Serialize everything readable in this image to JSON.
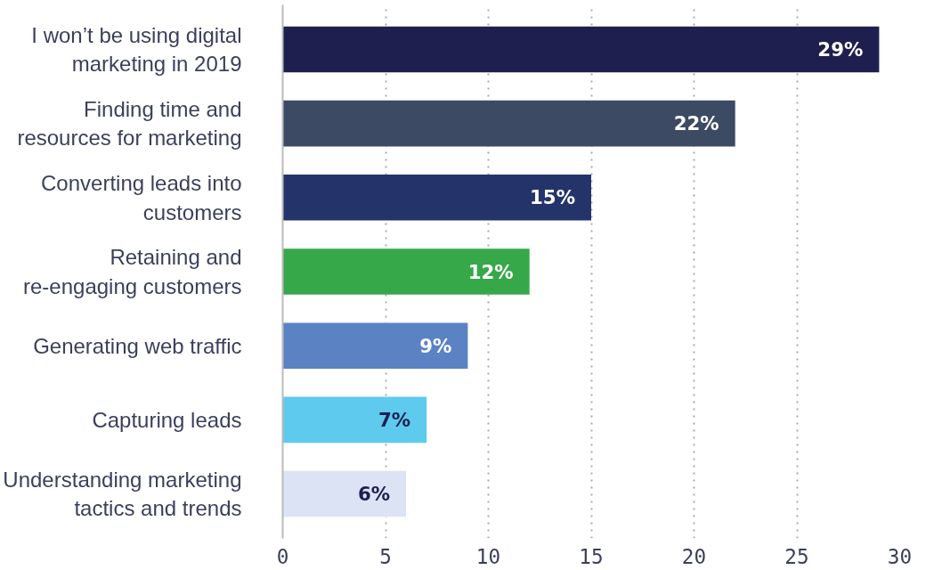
{
  "chart_data": {
    "type": "bar",
    "orientation": "horizontal",
    "categories": [
      "I won’t be using digital\nmarketing in 2019",
      "Finding time and\nresources for marketing",
      "Converting leads into\ncustomers",
      "Retaining and\nre-engaging customers",
      "Generating web traffic",
      "Capturing leads",
      "Understanding marketing\ntactics and trends"
    ],
    "values": [
      29,
      22,
      15,
      12,
      9,
      7,
      6
    ],
    "colors": [
      "#1f1f4f",
      "#3d4a63",
      "#24346b",
      "#36a84a",
      "#5b83c4",
      "#5ecbee",
      "#dce3f5"
    ],
    "value_labels": [
      "29%",
      "22%",
      "15%",
      "12%",
      "9%",
      "7%",
      "6%"
    ],
    "xlim": [
      0,
      30
    ],
    "xticks": [
      0,
      5,
      10,
      15,
      20,
      25,
      30
    ],
    "grid": "x"
  }
}
